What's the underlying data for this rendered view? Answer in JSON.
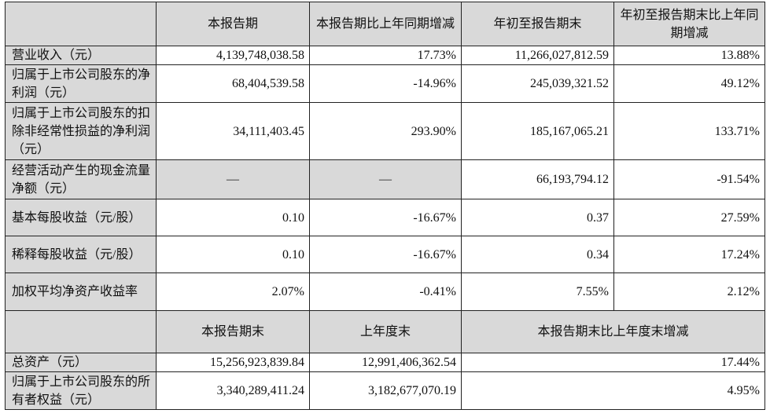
{
  "header1": [
    "",
    "本报告期",
    "本报告期比上年同期增减",
    "年初至报告期末",
    "年初至报告期末比上年同期增减"
  ],
  "rows1": [
    {
      "label": "营业收入（元）",
      "values": [
        "4,139,748,038.58",
        "17.73%",
        "11,266,027,812.59",
        "13.88%"
      ]
    },
    {
      "label": "归属于上市公司股东的净利润（元）",
      "values": [
        "68,404,539.58",
        "-14.96%",
        "245,039,321.52",
        "49.12%"
      ]
    },
    {
      "label": "归属于上市公司股东的扣除非经常性损益的净利润（元）",
      "values": [
        "34,111,403.45",
        "293.90%",
        "185,167,065.21",
        "133.71%"
      ]
    },
    {
      "label": "经营活动产生的现金流量净额（元）",
      "values": [
        "—",
        "—",
        "66,193,794.12",
        "-91.54%"
      ]
    },
    {
      "label": "基本每股收益（元/股）",
      "values": [
        "0.10",
        "-16.67%",
        "0.37",
        "27.59%"
      ]
    },
    {
      "label": "稀释每股收益（元/股）",
      "values": [
        "0.10",
        "-16.67%",
        "0.34",
        "17.24%"
      ]
    },
    {
      "label": "加权平均净资产收益率",
      "values": [
        "2.07%",
        "-0.41%",
        "7.55%",
        "2.12%"
      ]
    }
  ],
  "header2": [
    "",
    "本报告期末",
    "上年度末",
    "本报告期末比上年度末增减"
  ],
  "rows2": [
    {
      "label": "总资产（元）",
      "values": [
        "15,256,923,839.84",
        "12,991,406,362.54",
        "17.44%"
      ]
    },
    {
      "label": "归属于上市公司股东的所有者权益（元）",
      "values": [
        "3,340,289,411.24",
        "3,182,677,070.19",
        "4.95%"
      ]
    }
  ]
}
